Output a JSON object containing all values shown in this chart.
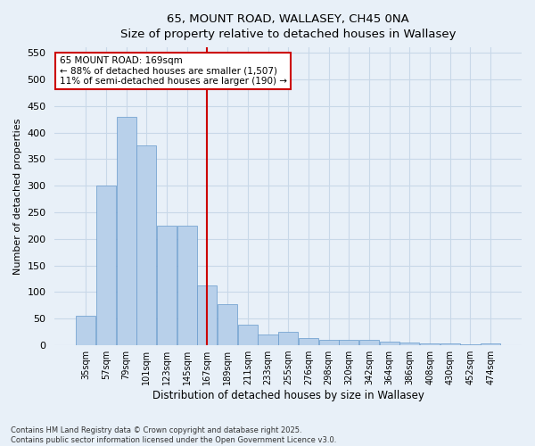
{
  "title_line1": "65, MOUNT ROAD, WALLASEY, CH45 0NA",
  "title_line2": "Size of property relative to detached houses in Wallasey",
  "xlabel": "Distribution of detached houses by size in Wallasey",
  "ylabel": "Number of detached properties",
  "categories": [
    "35sqm",
    "57sqm",
    "79sqm",
    "101sqm",
    "123sqm",
    "145sqm",
    "167sqm",
    "189sqm",
    "211sqm",
    "233sqm",
    "255sqm",
    "276sqm",
    "298sqm",
    "320sqm",
    "342sqm",
    "364sqm",
    "386sqm",
    "408sqm",
    "430sqm",
    "452sqm",
    "474sqm"
  ],
  "values": [
    55,
    300,
    430,
    375,
    225,
    225,
    113,
    78,
    38,
    20,
    25,
    13,
    10,
    10,
    10,
    7,
    5,
    4,
    3,
    2,
    3
  ],
  "bar_color": "#b8d0ea",
  "bar_edge_color": "#6699cc",
  "grid_color": "#c8d8e8",
  "background_color": "#e8f0f8",
  "vline_x_index": 6,
  "vline_color": "#cc0000",
  "annotation_text": "65 MOUNT ROAD: 169sqm\n← 88% of detached houses are smaller (1,507)\n11% of semi-detached houses are larger (190) →",
  "annotation_box_color": "#ffffff",
  "annotation_box_edge": "#cc0000",
  "ylim": [
    0,
    560
  ],
  "yticks": [
    0,
    50,
    100,
    150,
    200,
    250,
    300,
    350,
    400,
    450,
    500,
    550
  ],
  "footer_line1": "Contains HM Land Registry data © Crown copyright and database right 2025.",
  "footer_line2": "Contains public sector information licensed under the Open Government Licence v3.0."
}
